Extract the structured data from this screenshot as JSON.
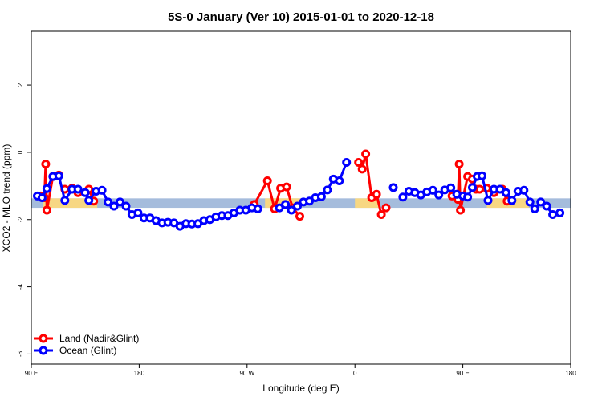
{
  "chart_data": {
    "type": "line",
    "title": "5S-0 January (Ver 10)   2015-01-01 to 2020-12-18",
    "xlabel": "Longitude (deg E)",
    "ylabel": "XCO2 - MLO trend (ppm)",
    "xlim": [
      0,
      450
    ],
    "ylim": [
      -6.3,
      3.6
    ],
    "x_ticks": [
      {
        "value": 0,
        "label": "90 E"
      },
      {
        "value": 90,
        "label": "180"
      },
      {
        "value": 180,
        "label": "90 W"
      },
      {
        "value": 270,
        "label": "0"
      },
      {
        "value": 360,
        "label": "90 E"
      },
      {
        "value": 450,
        "label": "180"
      }
    ],
    "y_ticks": [
      {
        "value": 2,
        "label": "2"
      },
      {
        "value": 0,
        "label": "0"
      },
      {
        "value": -2,
        "label": "-2"
      },
      {
        "value": -4,
        "label": "-4"
      },
      {
        "value": -6,
        "label": "-6"
      }
    ],
    "band": {
      "ymin": -1.65,
      "ymax": -1.37,
      "color": "#a5bcdc",
      "land_color": "#f7d783",
      "land_spans": [
        [
          10,
          55
        ],
        [
          195,
          225
        ],
        [
          270,
          290
        ],
        [
          380,
          415
        ]
      ]
    },
    "legend_position": "bottom-left",
    "series": [
      {
        "name": "Land (Nadir&Glint)",
        "color": "#ff0000",
        "segments": [
          [
            [
              8,
              -1.3
            ],
            [
              11,
              -1.35
            ],
            [
              12,
              -0.35
            ],
            [
              13,
              -1.72
            ],
            [
              18,
              -0.72
            ],
            [
              23,
              -0.68
            ]
          ],
          [
            [
              28,
              -1.1
            ],
            [
              34,
              -1.07
            ],
            [
              39,
              -1.2
            ],
            [
              48,
              -1.1
            ],
            [
              52,
              -1.45
            ]
          ],
          [
            [
              186,
              -1.55
            ],
            [
              197,
              -0.85
            ],
            [
              203,
              -1.68
            ],
            [
              208,
              -1.07
            ],
            [
              213,
              -1.03
            ],
            [
              218,
              -1.65
            ],
            [
              224,
              -1.9
            ]
          ],
          [
            [
              273,
              -0.3
            ],
            [
              276,
              -0.5
            ],
            [
              279,
              -0.05
            ],
            [
              284,
              -1.35
            ],
            [
              288,
              -1.25
            ],
            [
              292,
              -1.85
            ],
            [
              296,
              -1.65
            ]
          ],
          [
            [
              351,
              -1.3
            ],
            [
              356,
              -1.4
            ],
            [
              357,
              -0.35
            ],
            [
              358,
              -1.72
            ],
            [
              364,
              -0.72
            ],
            [
              368,
              -0.8
            ],
            [
              371,
              -1.1
            ]
          ],
          [
            [
              374,
              -1.1
            ],
            [
              380,
              -1.07
            ],
            [
              386,
              -1.2
            ],
            [
              393,
              -1.1
            ],
            [
              397,
              -1.45
            ]
          ]
        ]
      },
      {
        "name": "Ocean (Glint)",
        "color": "#0000ff",
        "segments": [
          [
            [
              5,
              -1.3
            ],
            [
              9,
              -1.35
            ],
            [
              13,
              -1.08
            ],
            [
              18,
              -0.72
            ],
            [
              23,
              -0.7
            ],
            [
              28,
              -1.43
            ],
            [
              34,
              -1.1
            ],
            [
              39,
              -1.1
            ],
            [
              45,
              -1.2
            ],
            [
              48,
              -1.43
            ],
            [
              54,
              -1.16
            ],
            [
              59,
              -1.13
            ],
            [
              64,
              -1.48
            ],
            [
              69,
              -1.6
            ],
            [
              74,
              -1.48
            ],
            [
              79,
              -1.6
            ],
            [
              84,
              -1.85
            ],
            [
              89,
              -1.8
            ],
            [
              94,
              -1.95
            ],
            [
              99,
              -1.95
            ],
            [
              104,
              -2.03
            ],
            [
              109,
              -2.1
            ],
            [
              114,
              -2.08
            ],
            [
              119,
              -2.1
            ],
            [
              124,
              -2.2
            ],
            [
              129,
              -2.12
            ],
            [
              134,
              -2.13
            ],
            [
              139,
              -2.12
            ],
            [
              144,
              -2.03
            ],
            [
              149,
              -2.0
            ],
            [
              154,
              -1.92
            ],
            [
              159,
              -1.88
            ],
            [
              164,
              -1.88
            ],
            [
              169,
              -1.8
            ],
            [
              174,
              -1.72
            ],
            [
              179,
              -1.72
            ],
            [
              184,
              -1.65
            ],
            [
              189,
              -1.68
            ]
          ],
          [
            [
              207,
              -1.65
            ],
            [
              212,
              -1.55
            ],
            [
              217,
              -1.72
            ],
            [
              222,
              -1.6
            ],
            [
              227,
              -1.48
            ],
            [
              232,
              -1.45
            ],
            [
              237,
              -1.35
            ],
            [
              242,
              -1.32
            ],
            [
              247,
              -1.12
            ],
            [
              252,
              -0.8
            ],
            [
              257,
              -0.85
            ],
            [
              263,
              -0.3
            ]
          ],
          [
            [
              302,
              -1.05
            ]
          ],
          [
            [
              310,
              -1.33
            ],
            [
              315,
              -1.16
            ],
            [
              320,
              -1.2
            ],
            [
              325,
              -1.27
            ],
            [
              330,
              -1.18
            ],
            [
              335,
              -1.13
            ],
            [
              340,
              -1.27
            ],
            [
              345,
              -1.12
            ],
            [
              350,
              -1.06
            ],
            [
              355,
              -1.25
            ],
            [
              360,
              -1.3
            ],
            [
              364,
              -1.33
            ],
            [
              368,
              -1.05
            ],
            [
              372,
              -0.72
            ],
            [
              376,
              -0.7
            ],
            [
              381,
              -1.43
            ],
            [
              386,
              -1.1
            ],
            [
              391,
              -1.1
            ],
            [
              396,
              -1.2
            ],
            [
              401,
              -1.43
            ],
            [
              406,
              -1.16
            ],
            [
              411,
              -1.13
            ],
            [
              416,
              -1.48
            ],
            [
              420,
              -1.68
            ],
            [
              425,
              -1.48
            ],
            [
              430,
              -1.6
            ],
            [
              435,
              -1.85
            ],
            [
              441,
              -1.8
            ]
          ]
        ]
      }
    ]
  }
}
